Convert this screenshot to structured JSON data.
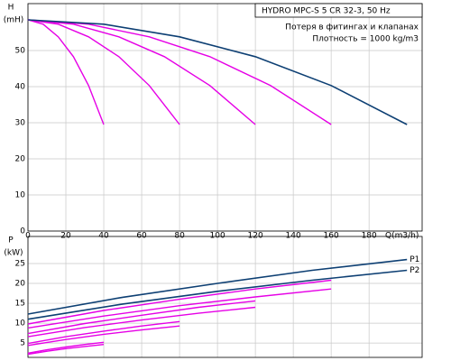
{
  "chart_data": [
    {
      "type": "line",
      "title": "HYDRO MPC-S 5 CR 32-3, 50 Hz",
      "annotations": [
        "Потеря в фитингах и клапанах",
        "Плотность = 1000 kg/m3"
      ],
      "ylabel": "H",
      "yunit": "(mH)",
      "xlabel": "Q(m3/h)",
      "xlim": [
        0,
        208
      ],
      "xticks": [
        0,
        20,
        40,
        60,
        80,
        100,
        120,
        140,
        160,
        180
      ],
      "ylim": [
        0,
        63
      ],
      "yticks": [
        0,
        10,
        20,
        30,
        40,
        50
      ],
      "grid": true,
      "series": [
        {
          "color": "#e600e6",
          "x": [
            0,
            8,
            16,
            24,
            32,
            40
          ],
          "values": [
            58.5,
            57.3,
            53.8,
            48.3,
            40.3,
            29.5
          ]
        },
        {
          "color": "#e600e6",
          "x": [
            0,
            16,
            32,
            48,
            64,
            80
          ],
          "values": [
            58.5,
            57.3,
            53.8,
            48.3,
            40.3,
            29.5
          ]
        },
        {
          "color": "#e600e6",
          "x": [
            0,
            24,
            48,
            72,
            96,
            120
          ],
          "values": [
            58.5,
            57.3,
            53.8,
            48.3,
            40.3,
            29.5
          ]
        },
        {
          "color": "#e600e6",
          "x": [
            0,
            32,
            64,
            96,
            128,
            160
          ],
          "values": [
            58.5,
            57.3,
            53.8,
            48.3,
            40.3,
            29.5
          ]
        },
        {
          "color": "#0d3f73",
          "x": [
            0,
            40,
            80,
            120,
            160,
            200
          ],
          "values": [
            58.5,
            57.3,
            53.8,
            48.3,
            40.3,
            29.5
          ]
        }
      ]
    },
    {
      "type": "line",
      "ylabel": "P",
      "yunit": "(kW)",
      "xlim": [
        0,
        208
      ],
      "xticks": [
        0,
        20,
        40,
        60,
        80,
        100,
        120,
        140,
        160,
        180
      ],
      "ylim": [
        1.4,
        31.8
      ],
      "yticks": [
        5,
        10,
        15,
        20,
        25
      ],
      "grid": true,
      "series": [
        {
          "color": "#e600e6",
          "x": [
            0,
            10,
            20,
            30,
            40
          ],
          "values": [
            2.46,
            3.3,
            4.0,
            4.65,
            5.2
          ]
        },
        {
          "color": "#e600e6",
          "x": [
            0,
            10,
            20,
            30,
            40
          ],
          "values": [
            2.2,
            2.95,
            3.6,
            4.15,
            4.65
          ]
        },
        {
          "color": "#e600e6",
          "x": [
            0,
            20,
            40,
            60,
            80
          ],
          "values": [
            4.9,
            6.6,
            8.0,
            9.3,
            10.4
          ]
        },
        {
          "color": "#e600e6",
          "x": [
            0,
            20,
            40,
            60,
            80
          ],
          "values": [
            4.4,
            5.9,
            7.2,
            8.3,
            9.3
          ]
        },
        {
          "color": "#e600e6",
          "x": [
            0,
            30,
            60,
            90,
            120
          ],
          "values": [
            7.4,
            9.9,
            12.0,
            14.0,
            15.6
          ]
        },
        {
          "color": "#e600e6",
          "x": [
            0,
            30,
            60,
            90,
            120
          ],
          "values": [
            6.6,
            8.9,
            10.8,
            12.5,
            14.0
          ]
        },
        {
          "color": "#e600e6",
          "x": [
            0,
            40,
            80,
            120,
            160
          ],
          "values": [
            9.8,
            13.2,
            16.0,
            18.6,
            20.8
          ]
        },
        {
          "color": "#e600e6",
          "x": [
            0,
            40,
            80,
            120,
            160
          ],
          "values": [
            8.8,
            11.8,
            14.4,
            16.6,
            18.6
          ]
        },
        {
          "name": "P1",
          "color": "#0d3f73",
          "x": [
            0,
            50,
            100,
            150,
            200
          ],
          "values": [
            12.3,
            16.5,
            20.0,
            23.3,
            26.0
          ]
        },
        {
          "name": "P2",
          "color": "#0d3f73",
          "x": [
            0,
            50,
            100,
            150,
            200
          ],
          "values": [
            11.0,
            14.8,
            18.0,
            20.8,
            23.3
          ]
        }
      ]
    }
  ]
}
